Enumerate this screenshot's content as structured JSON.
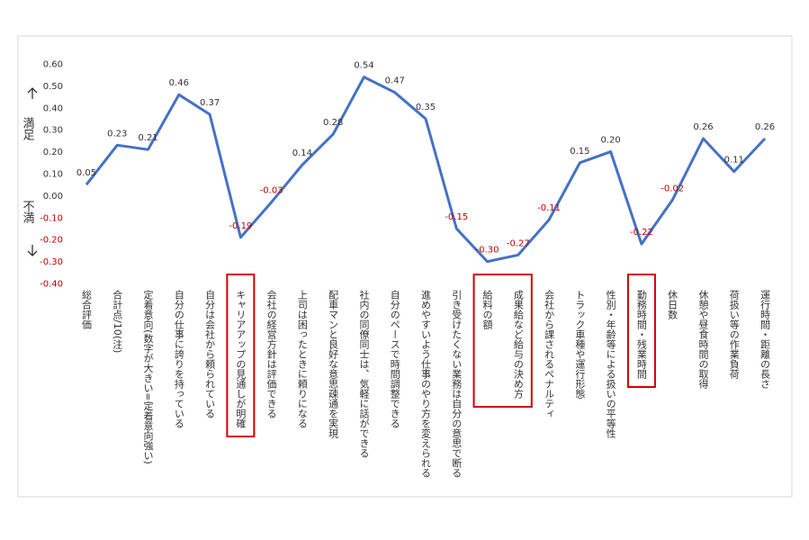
{
  "chart_data": {
    "type": "line",
    "categories": [
      "総合評価",
      "合計点/10(注)",
      "定着意向(数字が大きい=定着意向強い)",
      "自分の仕事に誇りを持っている",
      "自分は会社から頼られている",
      "キャリアアップの見通しが明確",
      "会社の経営方針は評価できる",
      "上司は困ったときに頼りになる",
      "配車マンと良好な意思疎通を実現",
      "社内の同僚同士は、気軽に話ができる",
      "自分のペースで時間調整できる",
      "進めやすいよう仕事のやり方を変えられる",
      "引き受けたくない業務は自分の意思で断る",
      "給料の額",
      "成果給など給与の決め方",
      "会社から課されるペナルティ",
      "トラック車種や運行形態",
      "性別・年齢等による扱いの平等性",
      "勤務時間・残業時間",
      "休日数",
      "休憩や昼食時間の取得",
      "荷扱い等の作業負荷",
      "運行時間・距離の長さ"
    ],
    "values": [
      0.05,
      0.23,
      0.21,
      0.46,
      0.37,
      -0.19,
      -0.03,
      0.14,
      0.28,
      0.54,
      0.47,
      0.35,
      -0.15,
      -0.3,
      -0.27,
      -0.11,
      0.15,
      0.2,
      -0.22,
      -0.02,
      0.26,
      0.11,
      0.26
    ],
    "value_labels": [
      "0.05",
      "0.23",
      "0.21",
      "0.46",
      "0.37",
      "-0.19",
      "-0.03",
      "0.14",
      "0.28",
      "0.54",
      "0.47",
      "0.35",
      "-0.15",
      "-0.30",
      "-0.27",
      "-0.11",
      "0.15",
      "0.20",
      "-0.22",
      "-0.02",
      "0.26",
      "0.11",
      "0.26"
    ],
    "color": "#4472c4",
    "ylim": [
      -0.4,
      0.6
    ],
    "yticks": [
      {
        "value": 0.6,
        "label": "0.60"
      },
      {
        "value": 0.5,
        "label": "0.50"
      },
      {
        "value": 0.4,
        "label": "0.40"
      },
      {
        "value": 0.3,
        "label": "0.30"
      },
      {
        "value": 0.2,
        "label": "0.20"
      },
      {
        "value": 0.1,
        "label": "0.10"
      },
      {
        "value": 0,
        "label": "0.00"
      },
      {
        "value": -0.1,
        "label": "-0.10"
      },
      {
        "value": -0.2,
        "label": "-0.20"
      },
      {
        "value": -0.3,
        "label": "-0.30"
      },
      {
        "value": -0.4,
        "label": "-0.40"
      }
    ],
    "negative_color": "#c00000",
    "y_label_top": "満足",
    "y_label_bottom": "不満"
  }
}
